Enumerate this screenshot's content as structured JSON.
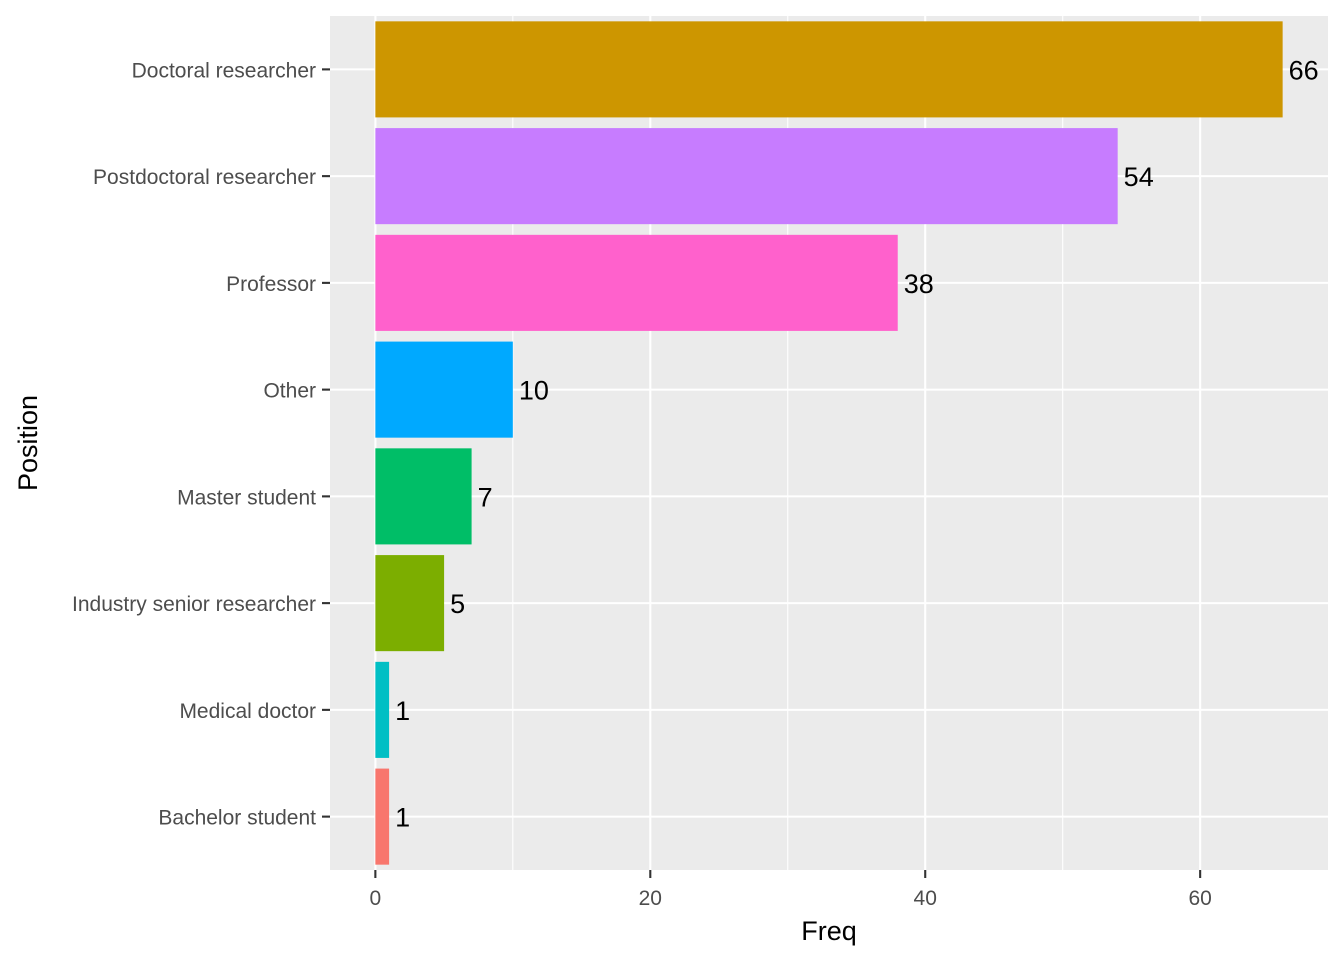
{
  "chart_data": {
    "type": "bar",
    "orientation": "horizontal",
    "title": "",
    "xlabel": "Freq",
    "ylabel": "Position",
    "xlim": [
      -3.3,
      69.3
    ],
    "x_ticks": [
      0,
      20,
      40,
      60
    ],
    "x_minor_ticks": [
      10,
      30,
      50
    ],
    "grid": true,
    "legend": "none",
    "categories": [
      "Bachelor student",
      "Medical doctor",
      "Industry senior researcher",
      "Master student",
      "Other",
      "Professor",
      "Postdoctoral researcher",
      "Doctoral researcher"
    ],
    "values": [
      1,
      1,
      5,
      7,
      10,
      38,
      54,
      66
    ],
    "colors": [
      "#F8766D",
      "#00BFC4",
      "#7CAE00",
      "#00BE67",
      "#00A9FF",
      "#FF61CC",
      "#C77CFF",
      "#CD9600"
    ],
    "data_labels": [
      "1",
      "1",
      "5",
      "7",
      "10",
      "38",
      "54",
      "66"
    ]
  }
}
